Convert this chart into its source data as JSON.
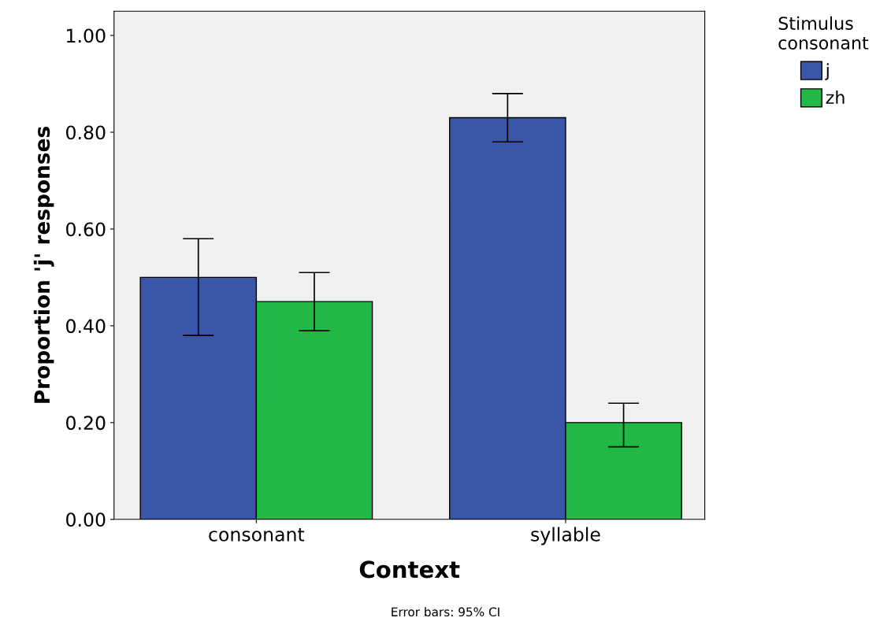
{
  "chart_data": {
    "type": "bar",
    "xlabel": "Context",
    "ylabel": "Proportion 'j' responses",
    "legend_title": "Stimulus\nconsonant",
    "categories": [
      "consonant",
      "syllable"
    ],
    "series": [
      {
        "name": "j",
        "color": "#3a56a8",
        "values": [
          0.5,
          0.83
        ],
        "errors": [
          [
            0.38,
            0.58
          ],
          [
            0.78,
            0.88
          ]
        ]
      },
      {
        "name": "zh",
        "color": "#22b845",
        "values": [
          0.45,
          0.2
        ],
        "errors": [
          [
            0.39,
            0.51
          ],
          [
            0.15,
            0.24
          ]
        ]
      }
    ],
    "ylim": [
      0,
      1.05
    ],
    "yticks": [
      {
        "value": 0,
        "label": "0.00"
      },
      {
        "value": 0.2,
        "label": "0.20"
      },
      {
        "value": 0.4,
        "label": "0.40"
      },
      {
        "value": 0.6,
        "label": "0.60"
      },
      {
        "value": 0.8,
        "label": "0.80"
      },
      {
        "value": 1.0,
        "label": "1.00"
      }
    ],
    "grid": false,
    "legend": "top right",
    "annotations": [
      "Error bars: 95% CI"
    ]
  }
}
